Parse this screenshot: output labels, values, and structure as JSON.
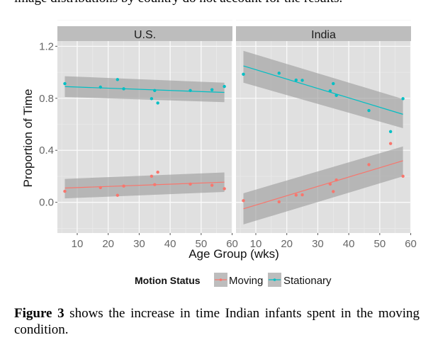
{
  "page": {
    "top_text": "image distributions by country do not account for the results.",
    "caption_bold": "Figure 3",
    "caption_rest": " shows the increase in time Indian infants spent in the moving condition."
  },
  "chart_data": {
    "type": "scatter",
    "subtype": "faceted scatter with linear fit and confidence band",
    "xlabel": "Age Group (wks)",
    "ylabel": "Proportion of Time",
    "xlim": [
      3.6,
      60.1
    ],
    "ylim": [
      -0.236,
      1.24
    ],
    "xticks": [
      10,
      20,
      30,
      40,
      50,
      60
    ],
    "yticks": [
      0.0,
      0.4,
      0.8,
      1.2
    ],
    "ytick_labels": [
      "0.0",
      "0.4",
      "0.8",
      "1.2"
    ],
    "grid": true,
    "legend": {
      "title": "Motion Status",
      "placement": "bottom",
      "entries": [
        "Moving",
        "Stationary"
      ]
    },
    "colors": {
      "Moving": "#f8766d",
      "Stationary": "#00bfc4",
      "panel_bg": "#e0e0e0",
      "strip_bg": "#bdbdbd",
      "band": "#999999"
    },
    "facets": [
      {
        "title": "U.S.",
        "series": [
          {
            "name": "Moving",
            "x": [
              6,
              17.5,
              23,
              25,
              34,
              35,
              36,
              46.5,
              53.5,
              57.5
            ],
            "y": [
              0.085,
              0.113,
              0.054,
              0.125,
              0.201,
              0.136,
              0.232,
              0.14,
              0.131,
              0.105
            ],
            "fit": {
              "x": [
                6,
                57.5
              ],
              "y": [
                0.11,
                0.155
              ],
              "lower": [
                0.03,
                0.08
              ],
              "upper": [
                0.18,
                0.23
              ]
            }
          },
          {
            "name": "Stationary",
            "x": [
              6,
              17.5,
              23,
              25,
              34,
              35,
              36,
              46.5,
              53.5,
              57.5
            ],
            "y": [
              0.913,
              0.886,
              0.944,
              0.873,
              0.797,
              0.86,
              0.764,
              0.86,
              0.866,
              0.891
            ],
            "fit": {
              "x": [
                6,
                57.5
              ],
              "y": [
                0.89,
                0.845
              ],
              "lower": [
                0.81,
                0.77
              ],
              "upper": [
                0.97,
                0.92
              ]
            }
          }
        ]
      },
      {
        "title": "India",
        "series": [
          {
            "name": "Moving",
            "x": [
              6,
              17.5,
              23,
              25,
              34,
              35,
              36,
              46.5,
              53.5,
              57.5
            ],
            "y": [
              0.013,
              0.004,
              0.056,
              0.058,
              0.14,
              0.083,
              0.172,
              0.29,
              0.452,
              0.201
            ],
            "fit": {
              "x": [
                6,
                57.5
              ],
              "y": [
                -0.05,
                0.32
              ],
              "lower": [
                -0.17,
                0.2
              ],
              "upper": [
                0.07,
                0.43
              ]
            }
          },
          {
            "name": "Stationary",
            "x": [
              6,
              17.5,
              23,
              25,
              34,
              35,
              36,
              46.5,
              53.5,
              57.5
            ],
            "y": [
              0.985,
              0.993,
              0.94,
              0.938,
              0.857,
              0.913,
              0.822,
              0.706,
              0.544,
              0.797
            ],
            "fit": {
              "x": [
                6,
                57.5
              ],
              "y": [
                1.049,
                0.677
              ],
              "lower": [
                0.92,
                0.57
              ],
              "upper": [
                1.165,
                0.795
              ]
            }
          }
        ]
      }
    ]
  }
}
